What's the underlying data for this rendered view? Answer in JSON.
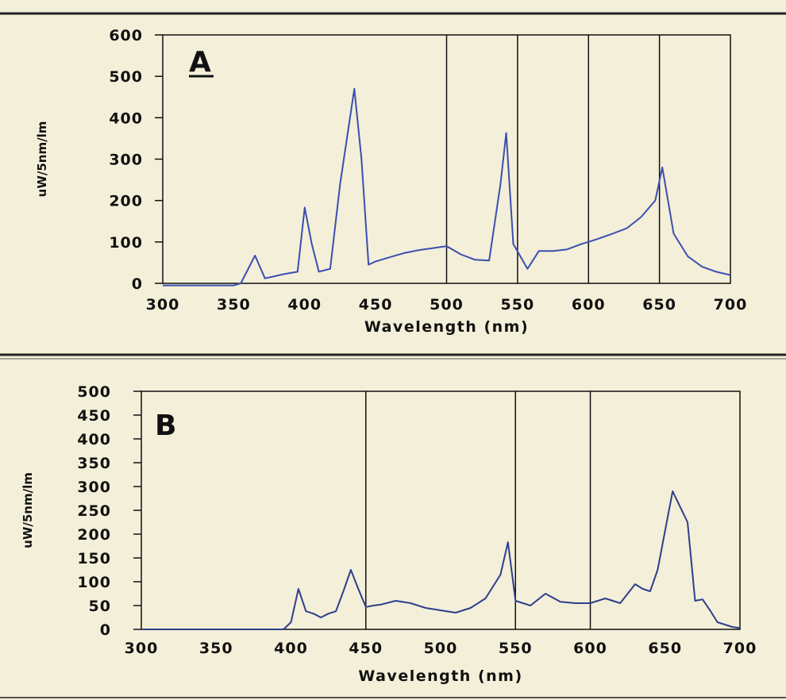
{
  "chart_data": [
    {
      "type": "line",
      "panel_label": "A",
      "xlabel": "Wavelength (nm)",
      "ylabel": "uW/5nm/lm",
      "xlim": [
        300,
        700
      ],
      "ylim": [
        0,
        600
      ],
      "xticks": [
        300,
        350,
        400,
        450,
        500,
        550,
        600,
        650,
        700
      ],
      "yticks": [
        0,
        100,
        200,
        300,
        400,
        500,
        600
      ],
      "vlines": [
        500,
        550,
        600,
        650
      ],
      "line_color": "#3a4fb0",
      "series": [
        {
          "x": [
            300,
            310,
            320,
            330,
            340,
            350,
            355,
            365,
            372,
            380,
            385,
            395,
            400,
            405,
            410,
            418,
            425,
            435,
            440,
            445,
            450,
            460,
            470,
            480,
            490,
            500,
            510,
            520,
            530,
            538,
            542,
            547,
            557,
            565,
            575,
            585,
            595,
            600,
            607,
            617,
            627,
            637,
            647,
            652,
            660,
            670,
            680,
            690,
            700
          ],
          "y": [
            -5,
            -5,
            -5,
            -5,
            -5,
            -5,
            0,
            67,
            12,
            18,
            22,
            28,
            183,
            95,
            28,
            35,
            240,
            470,
            300,
            45,
            53,
            63,
            73,
            80,
            85,
            90,
            70,
            57,
            55,
            240,
            363,
            95,
            35,
            78,
            78,
            82,
            95,
            100,
            108,
            120,
            133,
            160,
            200,
            280,
            120,
            65,
            40,
            28,
            20
          ]
        }
      ]
    },
    {
      "type": "line",
      "panel_label": "B",
      "xlabel": "Wavelength (nm)",
      "ylabel": "uW/5nm/lm",
      "xlim": [
        300,
        700
      ],
      "ylim": [
        0,
        500
      ],
      "xticks": [
        300,
        350,
        400,
        450,
        500,
        550,
        600,
        650,
        700
      ],
      "yticks": [
        0,
        50,
        100,
        150,
        200,
        250,
        300,
        350,
        400,
        450,
        500
      ],
      "vlines": [
        450,
        550,
        600
      ],
      "line_color": "#2e3e8c",
      "series": [
        {
          "x": [
            300,
            320,
            340,
            360,
            380,
            395,
            400,
            405,
            410,
            415,
            420,
            425,
            430,
            435,
            440,
            445,
            450,
            455,
            460,
            470,
            480,
            490,
            500,
            510,
            520,
            530,
            540,
            545,
            550,
            555,
            560,
            570,
            580,
            590,
            600,
            610,
            620,
            630,
            635,
            640,
            645,
            655,
            665,
            670,
            675,
            680,
            685,
            690,
            695,
            700
          ],
          "y": [
            0,
            0,
            0,
            0,
            0,
            0,
            15,
            85,
            38,
            33,
            25,
            33,
            38,
            80,
            125,
            85,
            47,
            50,
            52,
            60,
            55,
            45,
            40,
            35,
            45,
            65,
            115,
            183,
            60,
            55,
            50,
            75,
            58,
            55,
            55,
            65,
            55,
            95,
            85,
            80,
            125,
            290,
            225,
            60,
            63,
            40,
            15,
            10,
            5,
            3
          ]
        }
      ]
    }
  ]
}
